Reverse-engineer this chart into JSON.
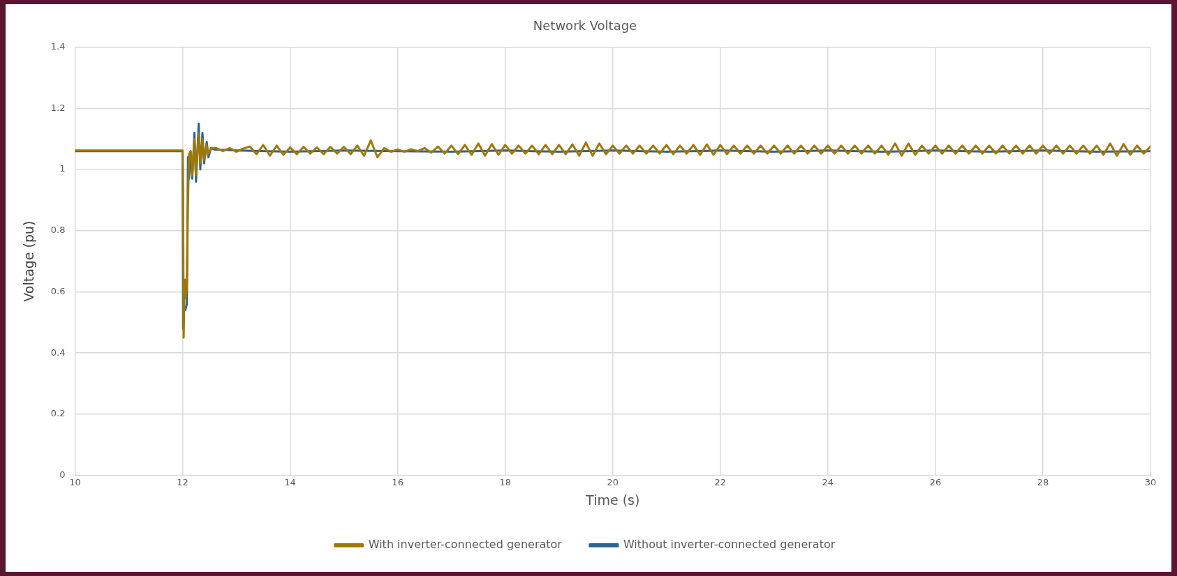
{
  "chart_data": {
    "type": "line",
    "title": "Network Voltage",
    "xlabel": "Time (s)",
    "ylabel": "Voltage (pu)",
    "xlim": [
      10,
      30
    ],
    "xticks": [
      10,
      12,
      14,
      16,
      18,
      20,
      22,
      24,
      26,
      28,
      30
    ],
    "ylim": [
      0,
      1.4
    ],
    "yticks": [
      0,
      0.2,
      0.4,
      0.6,
      0.8,
      1,
      1.2,
      1.4
    ],
    "grid": true,
    "legend": "bottom",
    "marker": "none",
    "line_style": "solid",
    "series": [
      {
        "name": "With inverter-connected generator",
        "color": "#a07800",
        "x": [
          10,
          11,
          12,
          12.01,
          12.02,
          12.04,
          12.06,
          12.08,
          12.1,
          12.12,
          12.15,
          12.18,
          12.22,
          12.25,
          12.3,
          12.33,
          12.37,
          12.4,
          12.45,
          12.48,
          12.53,
          12.625,
          12.75,
          12.875,
          13,
          13.125,
          13.25,
          13.375,
          13.5,
          13.625,
          13.75,
          13.875,
          14,
          14.125,
          14.25,
          14.375,
          14.5,
          14.625,
          14.75,
          14.875,
          15,
          15.125,
          15.25,
          15.375,
          15.5,
          15.625,
          15.75,
          15.875,
          16,
          16.125,
          16.25,
          16.375,
          16.5,
          16.625,
          16.75,
          16.875,
          17,
          17.125,
          17.25,
          17.375,
          17.5,
          17.625,
          17.75,
          17.875,
          18,
          18.125,
          18.25,
          18.375,
          18.5,
          18.625,
          18.75,
          18.875,
          19,
          19.125,
          19.25,
          19.375,
          19.5,
          19.625,
          19.75,
          19.875,
          20,
          20.125,
          20.25,
          20.375,
          20.5,
          20.625,
          20.75,
          20.875,
          21,
          21.125,
          21.25,
          21.375,
          21.5,
          21.625,
          21.75,
          21.875,
          22,
          22.125,
          22.25,
          22.375,
          22.5,
          22.625,
          22.75,
          22.875,
          23,
          23.125,
          23.25,
          23.375,
          23.5,
          23.625,
          23.75,
          23.875,
          24,
          24.125,
          24.25,
          24.375,
          24.5,
          24.625,
          24.75,
          24.875,
          25,
          25.125,
          25.25,
          25.375,
          25.5,
          25.625,
          25.75,
          25.875,
          26,
          26.125,
          26.25,
          26.375,
          26.5,
          26.625,
          26.75,
          26.875,
          27,
          27.125,
          27.25,
          27.375,
          27.5,
          27.625,
          27.75,
          27.875,
          28,
          28.125,
          28.25,
          28.375,
          28.5,
          28.625,
          28.75,
          28.875,
          29,
          29.125,
          29.25,
          29.375,
          29.5,
          29.625,
          29.75,
          29.875,
          30
        ],
        "values": [
          1.062,
          1.062,
          1.062,
          0.93,
          0.45,
          0.64,
          0.58,
          0.62,
          0.88,
          1.05,
          1.06,
          0.98,
          1.1,
          0.98,
          1.12,
          1.02,
          1.1,
          1.03,
          1.08,
          1.05,
          1.07,
          1.07,
          1.06,
          1.07,
          1.058,
          1.068,
          1.075,
          1.05,
          1.08,
          1.045,
          1.078,
          1.048,
          1.072,
          1.05,
          1.074,
          1.052,
          1.072,
          1.05,
          1.074,
          1.052,
          1.074,
          1.05,
          1.078,
          1.045,
          1.095,
          1.04,
          1.07,
          1.058,
          1.065,
          1.058,
          1.066,
          1.06,
          1.07,
          1.055,
          1.075,
          1.052,
          1.078,
          1.05,
          1.08,
          1.048,
          1.085,
          1.045,
          1.083,
          1.048,
          1.08,
          1.052,
          1.078,
          1.052,
          1.078,
          1.05,
          1.08,
          1.05,
          1.08,
          1.05,
          1.082,
          1.045,
          1.088,
          1.045,
          1.085,
          1.05,
          1.078,
          1.052,
          1.078,
          1.052,
          1.078,
          1.052,
          1.078,
          1.052,
          1.08,
          1.05,
          1.078,
          1.052,
          1.08,
          1.048,
          1.082,
          1.048,
          1.08,
          1.05,
          1.078,
          1.052,
          1.078,
          1.052,
          1.078,
          1.052,
          1.078,
          1.052,
          1.078,
          1.052,
          1.078,
          1.052,
          1.078,
          1.052,
          1.078,
          1.052,
          1.078,
          1.052,
          1.078,
          1.052,
          1.078,
          1.052,
          1.078,
          1.048,
          1.085,
          1.045,
          1.085,
          1.048,
          1.078,
          1.052,
          1.078,
          1.052,
          1.078,
          1.052,
          1.078,
          1.052,
          1.078,
          1.052,
          1.078,
          1.052,
          1.078,
          1.052,
          1.078,
          1.052,
          1.078,
          1.052,
          1.078,
          1.052,
          1.078,
          1.052,
          1.078,
          1.052,
          1.078,
          1.052,
          1.078,
          1.048,
          1.085,
          1.045,
          1.083,
          1.048,
          1.078,
          1.052,
          1.075
        ]
      },
      {
        "name": "Without inverter-connected generator",
        "color": "#2a6496",
        "x": [
          10,
          11,
          12,
          12.01,
          12.02,
          12.05,
          12.08,
          12.1,
          12.12,
          12.15,
          12.18,
          12.22,
          12.25,
          12.3,
          12.33,
          12.37,
          12.4,
          12.45,
          12.48,
          12.53,
          12.6,
          13,
          14,
          15,
          16,
          17,
          18,
          19,
          20,
          21,
          22,
          23,
          24,
          25,
          26,
          27,
          28,
          29,
          30
        ],
        "values": [
          1.06,
          1.06,
          1.06,
          0.48,
          0.55,
          0.54,
          0.56,
          1.04,
          0.97,
          1.06,
          0.97,
          1.12,
          0.96,
          1.15,
          1,
          1.12,
          1.02,
          1.09,
          1.04,
          1.07,
          1.065,
          1.062,
          1.058,
          1.062,
          1.06,
          1.058,
          1.062,
          1.058,
          1.062,
          1.058,
          1.062,
          1.058,
          1.062,
          1.058,
          1.062,
          1.058,
          1.062,
          1.058,
          1.06
        ]
      }
    ]
  }
}
